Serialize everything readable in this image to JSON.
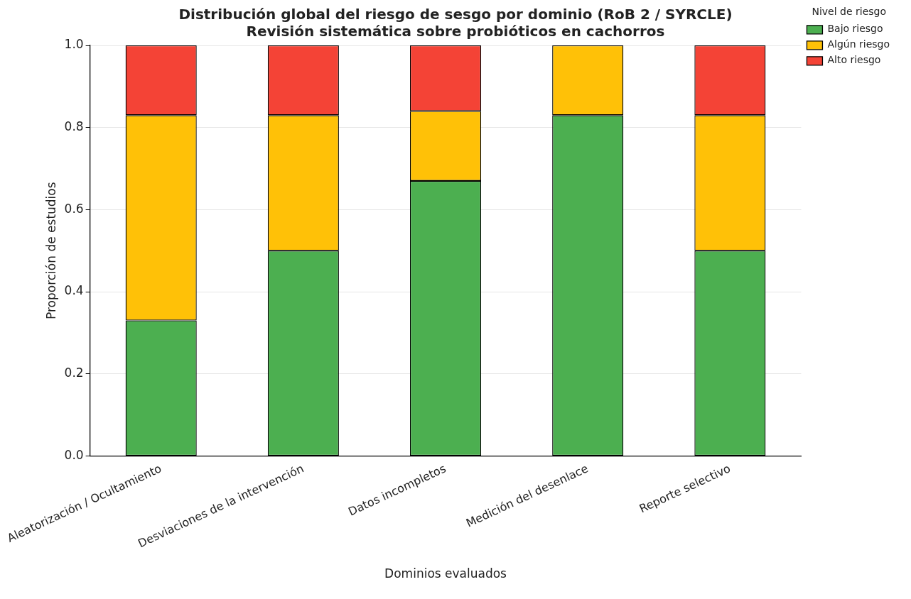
{
  "chart_data": {
    "type": "bar",
    "title": "Distribución global del riesgo de sesgo por dominio (RoB 2 / SYRCLE)",
    "subtitle": "Revisión sistemática sobre probióticos en cachorros",
    "xlabel": "Dominios evaluados",
    "ylabel": "Proporción de estudios",
    "legend_title": "Nivel de riesgo",
    "categories": [
      "Aleatorización / Ocultamiento",
      "Desviaciones de la intervención",
      "Datos incompletos",
      "Medición del desenlace",
      "Reporte selectivo"
    ],
    "stacked": true,
    "series": [
      {
        "name": "Bajo riesgo",
        "color": "#4caf50",
        "values": [
          0.33,
          0.5,
          0.67,
          0.83,
          0.5
        ]
      },
      {
        "name": "Algún riesgo",
        "color": "#ffc107",
        "values": [
          0.5,
          0.33,
          0.17,
          0.17,
          0.33
        ]
      },
      {
        "name": "Alto riesgo",
        "color": "#f44336",
        "values": [
          0.17,
          0.17,
          0.16,
          0,
          0.17
        ]
      }
    ],
    "ylim": [
      0,
      1
    ],
    "yticks": [
      {
        "value": 0,
        "label": "0.0"
      },
      {
        "value": 0.2,
        "label": "0.2"
      },
      {
        "value": 0.4,
        "label": "0.4"
      },
      {
        "value": 0.6,
        "label": "0.6"
      },
      {
        "value": 0.8,
        "label": "0.8"
      },
      {
        "value": 1,
        "label": "1.0"
      }
    ],
    "grid": "y",
    "legend": "top right"
  }
}
